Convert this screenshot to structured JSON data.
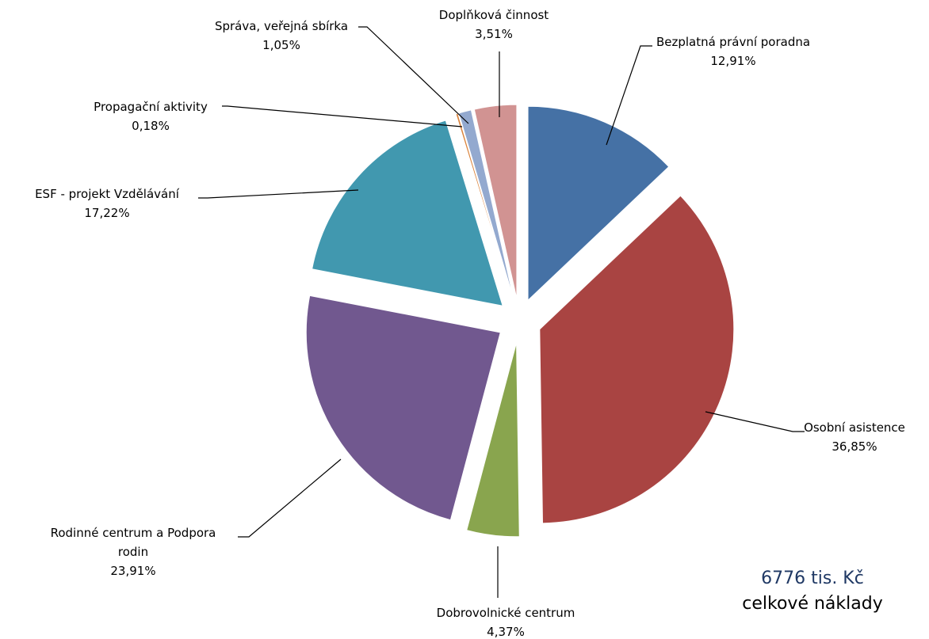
{
  "chart_data": {
    "type": "pie",
    "unit": "%",
    "slices": [
      {
        "label": "Bezplatná právní poradna",
        "display": "12,91%",
        "value": 12.91,
        "color": "#4571a5"
      },
      {
        "label": "Osobní asistence",
        "display": "36,85%",
        "value": 36.85,
        "color": "#a94442"
      },
      {
        "label": "Dobrovolnické centrum",
        "display": "4,37%",
        "value": 4.37,
        "color": "#89a54e"
      },
      {
        "label": "Rodinné centrum a Podpora rodin",
        "display": "23,91%",
        "value": 23.91,
        "color": "#71588f"
      },
      {
        "label": "ESF - projekt Vzdělávání",
        "display": "17,22%",
        "value": 17.22,
        "color": "#4198af"
      },
      {
        "label": "Propagační aktivity",
        "display": "0,18%",
        "value": 0.18,
        "color": "#db843d"
      },
      {
        "label": "Správa, veřejná sbírka",
        "display": "1,05%",
        "value": 1.05,
        "color": "#93a9cf"
      },
      {
        "label": "Doplňková činnost",
        "display": "3,51%",
        "value": 3.51,
        "color": "#d19392"
      }
    ]
  },
  "summary": {
    "total_value": "6776 tis. Kč",
    "total_caption": "celkové náklady"
  }
}
